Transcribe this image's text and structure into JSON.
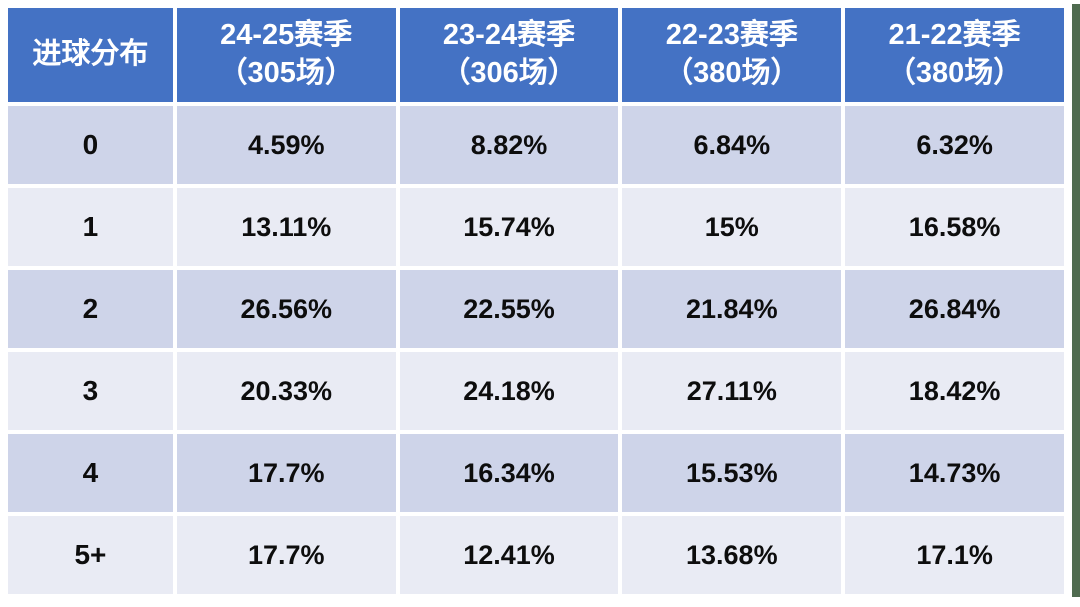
{
  "table": {
    "corner_header": "进球分布",
    "columns": [
      {
        "season": "24-25赛季",
        "matches": "（305场）"
      },
      {
        "season": "23-24赛季",
        "matches": "（306场）"
      },
      {
        "season": "22-23赛季",
        "matches": "（380场）"
      },
      {
        "season": "21-22赛季",
        "matches": "（380场）"
      }
    ],
    "rows": [
      {
        "label": "0",
        "values": [
          "4.59%",
          "8.82%",
          "6.84%",
          "6.32%"
        ]
      },
      {
        "label": "1",
        "values": [
          "13.11%",
          "15.74%",
          "15%",
          "16.58%"
        ]
      },
      {
        "label": "2",
        "values": [
          "26.56%",
          "22.55%",
          "21.84%",
          "26.84%"
        ]
      },
      {
        "label": "3",
        "values": [
          "20.33%",
          "24.18%",
          "27.11%",
          "18.42%"
        ]
      },
      {
        "label": "4",
        "values": [
          "17.7%",
          "16.34%",
          "15.53%",
          "14.73%"
        ]
      },
      {
        "label": "5+",
        "values": [
          "17.7%",
          "12.41%",
          "13.68%",
          "17.1%"
        ]
      }
    ]
  },
  "chart_data": {
    "type": "table",
    "title": "进球分布",
    "columns": [
      "进球分布",
      "24-25赛季（305场）",
      "23-24赛季（306场）",
      "22-23赛季（380场）",
      "21-22赛季（380场）"
    ],
    "rows": [
      [
        "0",
        "4.59%",
        "8.82%",
        "6.84%",
        "6.32%"
      ],
      [
        "1",
        "13.11%",
        "15.74%",
        "15%",
        "16.58%"
      ],
      [
        "2",
        "26.56%",
        "22.55%",
        "21.84%",
        "26.84%"
      ],
      [
        "3",
        "20.33%",
        "24.18%",
        "27.11%",
        "18.42%"
      ],
      [
        "4",
        "17.7%",
        "16.34%",
        "15.53%",
        "14.73%"
      ],
      [
        "5+",
        "17.7%",
        "12.41%",
        "13.68%",
        "17.1%"
      ]
    ],
    "layout": {
      "header_bg": "#4472c4",
      "header_text": "#ffffff",
      "band_dark": "#ced4e9",
      "band_light": "#e9ebf4",
      "gridline_gap_color": "#ffffff",
      "right_edge_strip": "#4f6b4f"
    }
  }
}
